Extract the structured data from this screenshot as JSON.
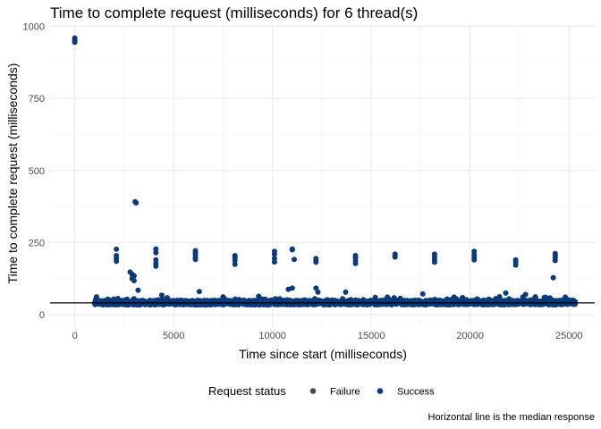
{
  "chart_data": {
    "type": "scatter",
    "title": "Time to complete request (milliseconds) for 6 thread(s)",
    "xlabel": "Time since start (milliseconds)",
    "ylabel": "Time to complete request (milliseconds)",
    "xlim": [
      -1250,
      26300
    ],
    "ylim": [
      -40,
      1005
    ],
    "x_ticks": [
      0,
      5000,
      10000,
      15000,
      20000,
      25000
    ],
    "x_tick_labels": [
      "0",
      "5000",
      "10000",
      "15000",
      "20000",
      "25000"
    ],
    "y_ticks": [
      0,
      250,
      500,
      750,
      1000
    ],
    "y_tick_labels": [
      "0",
      "250",
      "500",
      "750",
      "1000"
    ],
    "grid": true,
    "median_line_y": 41,
    "legend": {
      "title": "Request status",
      "placement": "bottom",
      "entries": [
        {
          "label": "Failure",
          "color": "#4d4d4d"
        },
        {
          "label": "Success",
          "color": "#0a3a7a"
        }
      ]
    },
    "caption": "Horizontal line is the median response",
    "series": [
      {
        "name": "Success",
        "color": "#0a3a7a",
        "points": [
          [
            0,
            960
          ],
          [
            0,
            955
          ],
          [
            0,
            950
          ],
          [
            0,
            945
          ],
          [
            3050,
            392
          ],
          [
            3100,
            388
          ],
          [
            2100,
            227
          ],
          [
            2100,
            205
          ],
          [
            2100,
            195
          ],
          [
            2100,
            185
          ],
          [
            2800,
            148
          ],
          [
            2900,
            140
          ],
          [
            3000,
            135
          ],
          [
            2900,
            125
          ],
          [
            3000,
            118
          ],
          [
            4100,
            228
          ],
          [
            4100,
            215
          ],
          [
            4100,
            190
          ],
          [
            4100,
            178
          ],
          [
            4100,
            168
          ],
          [
            6100,
            222
          ],
          [
            6100,
            215
          ],
          [
            6100,
            208
          ],
          [
            6100,
            198
          ],
          [
            6100,
            192
          ],
          [
            8100,
            205
          ],
          [
            8100,
            198
          ],
          [
            8100,
            188
          ],
          [
            8100,
            175
          ],
          [
            10100,
            220
          ],
          [
            10100,
            210
          ],
          [
            10100,
            195
          ],
          [
            10100,
            183
          ],
          [
            11000,
            228
          ],
          [
            11000,
            225
          ],
          [
            11100,
            192
          ],
          [
            12200,
            195
          ],
          [
            12200,
            188
          ],
          [
            12200,
            182
          ],
          [
            14200,
            205
          ],
          [
            14200,
            198
          ],
          [
            14200,
            188
          ],
          [
            14200,
            178
          ],
          [
            16200,
            210
          ],
          [
            16200,
            205
          ],
          [
            16200,
            200
          ],
          [
            18200,
            210
          ],
          [
            18200,
            200
          ],
          [
            18200,
            190
          ],
          [
            18200,
            182
          ],
          [
            20200,
            220
          ],
          [
            20200,
            208
          ],
          [
            20200,
            198
          ],
          [
            20200,
            190
          ],
          [
            22300,
            190
          ],
          [
            22300,
            182
          ],
          [
            22300,
            172
          ],
          [
            24300,
            212
          ],
          [
            24300,
            205
          ],
          [
            24300,
            198
          ],
          [
            24300,
            188
          ],
          [
            24200,
            128
          ],
          [
            3200,
            85
          ],
          [
            6300,
            80
          ],
          [
            10800,
            88
          ],
          [
            11000,
            92
          ],
          [
            12200,
            92
          ],
          [
            12300,
            78
          ],
          [
            13700,
            78
          ],
          [
            17600,
            72
          ],
          [
            21800,
            75
          ],
          [
            22800,
            70
          ],
          [
            23300,
            62
          ],
          [
            4400,
            68
          ],
          [
            7500,
            62
          ],
          [
            9300,
            64
          ],
          [
            15200,
            60
          ],
          [
            19600,
            58
          ],
          [
            1100,
            62
          ]
        ],
        "dense_band": {
          "x_range": [
            1000,
            25300
          ],
          "y_center": 42,
          "y_spread": 16
        }
      },
      {
        "name": "Failure",
        "color": "#4d4d4d",
        "points": []
      }
    ]
  }
}
